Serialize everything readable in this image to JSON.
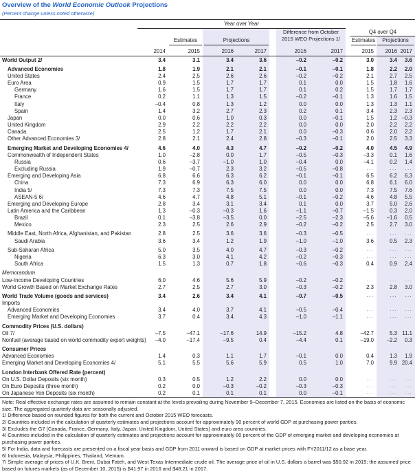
{
  "title": {
    "prefix": "Overview of the ",
    "italic": "World Economic Outlook",
    "suffix": " Projections"
  },
  "subtitle": "(Percent change unless noted otherwise)",
  "colors": {
    "accent_blue": "#2262c2",
    "highlight_band": "#e7e7f6",
    "rule": "#2a2a2a"
  },
  "table": {
    "header": {
      "group_year_over_year": "Year over Year",
      "group_difference_line1": "Difference from October",
      "group_difference_line2": "2015 WEO Projections 1/",
      "group_q4_over_q4": "Q4 over Q4",
      "estimates_yoy": "Estimates",
      "projections_yoy": "Projections",
      "estimates_q4": "Estimates",
      "projections_q4": "Projections",
      "years": [
        "2014",
        "2015",
        "2016",
        "2017",
        "2016",
        "2017",
        "2015",
        "2016",
        "2017"
      ]
    },
    "rows": [
      {
        "label": "World Output 2/",
        "indent": 0,
        "bold": true,
        "values": [
          "3.4",
          "3.1",
          "3.4",
          "3.6",
          "–0.2",
          "–0.2",
          "3.0",
          "3.4",
          "3.6"
        ]
      },
      {
        "label": "Advanced Economies",
        "indent": 1,
        "bold": true,
        "gap": true,
        "values": [
          "1.8",
          "1.9",
          "2.1",
          "2.1",
          "–0.1",
          "–0.1",
          "1.8",
          "2.2",
          "2.0"
        ]
      },
      {
        "label": "United States",
        "indent": 1,
        "values": [
          "2.4",
          "2.5",
          "2.6",
          "2.6",
          "–0.2",
          "–0.2",
          "2.1",
          "2.7",
          "2.5"
        ]
      },
      {
        "label": "Euro Area",
        "indent": 1,
        "values": [
          "0.9",
          "1.5",
          "1.7",
          "1.7",
          "0.1",
          "0.0",
          "1.5",
          "1.8",
          "1.6"
        ]
      },
      {
        "label": "Germany",
        "indent": 2,
        "values": [
          "1.6",
          "1.5",
          "1.7",
          "1.7",
          "0.1",
          "0.2",
          "1.5",
          "1.7",
          "1.7"
        ]
      },
      {
        "label": "France",
        "indent": 2,
        "values": [
          "0.2",
          "1.1",
          "1.3",
          "1.5",
          "–0.2",
          "–0.1",
          "1.3",
          "1.6",
          "1.5"
        ]
      },
      {
        "label": "Italy",
        "indent": 2,
        "values": [
          "–0.4",
          "0.8",
          "1.3",
          "1.2",
          "0.0",
          "0.0",
          "1.3",
          "1.3",
          "1.1"
        ]
      },
      {
        "label": "Spain",
        "indent": 2,
        "values": [
          "1.4",
          "3.2",
          "2.7",
          "2.3",
          "0.2",
          "0.1",
          "3.4",
          "2.3",
          "2.3"
        ]
      },
      {
        "label": "Japan",
        "indent": 1,
        "values": [
          "0.0",
          "0.6",
          "1.0",
          "0.3",
          "0.0",
          "–0.1",
          "1.5",
          "1.2",
          "–0.3"
        ]
      },
      {
        "label": "United Kingdom",
        "indent": 1,
        "values": [
          "2.9",
          "2.2",
          "2.2",
          "2.2",
          "0.0",
          "0.0",
          "2.0",
          "2.2",
          "2.2"
        ]
      },
      {
        "label": "Canada",
        "indent": 1,
        "values": [
          "2.5",
          "1.2",
          "1.7",
          "2.1",
          "0.0",
          "–0.3",
          "0.6",
          "2.0",
          "2.2"
        ]
      },
      {
        "label": "Other Advanced Economies 3/",
        "indent": 1,
        "values": [
          "2.8",
          "2.1",
          "2.4",
          "2.8",
          "–0.3",
          "–0.1",
          "2.0",
          "2.5",
          "3.3"
        ]
      },
      {
        "label": "Emerging Market and Developing Economies 4/",
        "indent": 1,
        "bold": true,
        "gap": true,
        "values": [
          "4.6",
          "4.0",
          "4.3",
          "4.7",
          "–0.2",
          "–0.2",
          "4.0",
          "4.5",
          "4.9"
        ]
      },
      {
        "label": "Commonwealth of Independent States",
        "indent": 1,
        "values": [
          "1.0",
          "–2.8",
          "0.0",
          "1.7",
          "–0.5",
          "–0.3",
          "–3.3",
          "0.1",
          "1.6"
        ]
      },
      {
        "label": "Russia",
        "indent": 2,
        "values": [
          "0.6",
          "–3.7",
          "–1.0",
          "1.0",
          "–0.4",
          "0.0",
          "–4.1",
          "0.2",
          "1.4"
        ]
      },
      {
        "label": "Excluding Russia",
        "indent": 2,
        "values": [
          "1.9",
          "–0.7",
          "2.3",
          "3.2",
          "–0.5",
          "–0.8",
          "...",
          "...",
          "..."
        ]
      },
      {
        "label": "Emerging and Developing Asia",
        "indent": 1,
        "values": [
          "6.8",
          "6.6",
          "6.3",
          "6.2",
          "–0.1",
          "–0.1",
          "6.5",
          "6.2",
          "6.3"
        ]
      },
      {
        "label": "China",
        "indent": 2,
        "values": [
          "7.3",
          "6.9",
          "6.3",
          "6.0",
          "0.0",
          "0.0",
          "6.8",
          "6.1",
          "6.0"
        ]
      },
      {
        "label": "India 5/",
        "indent": 2,
        "values": [
          "7.3",
          "7.3",
          "7.5",
          "7.5",
          "0.0",
          "0.0",
          "7.3",
          "7.5",
          "7.6"
        ]
      },
      {
        "label": "ASEAN-5 6/",
        "indent": 2,
        "values": [
          "4.6",
          "4.7",
          "4.8",
          "5.1",
          "–0.1",
          "–0.2",
          "4.6",
          "4.8",
          "5.5"
        ]
      },
      {
        "label": "Emerging and Developing Europe",
        "indent": 1,
        "values": [
          "2.8",
          "3.4",
          "3.1",
          "3.4",
          "0.1",
          "0.0",
          "3.7",
          "5.0",
          "2.6"
        ]
      },
      {
        "label": "Latin America and the Caribbean",
        "indent": 1,
        "values": [
          "1.3",
          "–0.3",
          "–0.3",
          "1.6",
          "–1.1",
          "–0.7",
          "–1.5",
          "0.3",
          "2.0"
        ]
      },
      {
        "label": "Brazil",
        "indent": 2,
        "values": [
          "0.1",
          "–3.8",
          "–3.5",
          "0.0",
          "–2.5",
          "–2.3",
          "–5.6",
          "–1.6",
          "0.5"
        ]
      },
      {
        "label": "Mexico",
        "indent": 2,
        "values": [
          "2.3",
          "2.5",
          "2.6",
          "2.9",
          "–0.2",
          "–0.2",
          "2.5",
          "2.7",
          "3.0"
        ]
      },
      {
        "label": "Middle East, North Africa, Afghanistan, and Pakistan",
        "indent": 1,
        "gap": true,
        "values": [
          "2.8",
          "2.5",
          "3.6",
          "3.6",
          "–0.3",
          "–0.5",
          "...",
          "...",
          "..."
        ]
      },
      {
        "label": "Saudi Arabia",
        "indent": 2,
        "values": [
          "3.6",
          "3.4",
          "1.2",
          "1.9",
          "–1.0",
          "–1.0",
          "3.6",
          "0.5",
          "2.3"
        ]
      },
      {
        "label": "Sub-Saharan Africa",
        "indent": 1,
        "gap": true,
        "values": [
          "5.0",
          "3.5",
          "4.0",
          "4.7",
          "–0.3",
          "–0.2",
          "...",
          "...",
          "..."
        ]
      },
      {
        "label": "Nigeria",
        "indent": 2,
        "values": [
          "6.3",
          "3.0",
          "4.1",
          "4.2",
          "–0.2",
          "–0.3",
          "...",
          "...",
          "..."
        ]
      },
      {
        "label": "South Africa",
        "indent": 2,
        "values": [
          "1.5",
          "1.3",
          "0.7",
          "1.8",
          "–0.6",
          "–0.3",
          "0.4",
          "0.9",
          "2.4"
        ]
      },
      {
        "label": "Memorandum",
        "indent": 0,
        "italic": true,
        "gap": true,
        "values": []
      },
      {
        "label": "Low-Income Developing Countries",
        "indent": 0,
        "values": [
          "6.0",
          "4.6",
          "5.6",
          "5.9",
          "–0.2",
          "–0.2",
          "...",
          "...",
          "..."
        ]
      },
      {
        "label": "World Growth Based on Market Exchange Rates",
        "indent": 0,
        "values": [
          "2.7",
          "2.5",
          "2.7",
          "3.0",
          "–0.3",
          "–0.2",
          "2.3",
          "2.8",
          "3.0"
        ]
      },
      {
        "label": "World Trade Volume (goods and services)",
        "indent": 0,
        "bold": true,
        "gap": true,
        "values": [
          "3.4",
          "2.6",
          "3.4",
          "4.1",
          "–0.7",
          "–0.5",
          "...",
          "...",
          "..."
        ]
      },
      {
        "label": "Imports",
        "indent": 0,
        "values": []
      },
      {
        "label": "Advanced Economies",
        "indent": 1,
        "values": [
          "3.4",
          "4.0",
          "3.7",
          "4.1",
          "–0.5",
          "–0.4",
          "...",
          "...",
          "..."
        ]
      },
      {
        "label": "Emerging Market and Developing Economies",
        "indent": 1,
        "values": [
          "3.7",
          "0.4",
          "3.4",
          "4.3",
          "–1.0",
          "–1.1",
          "...",
          "...",
          "..."
        ]
      },
      {
        "label": "Commodity Prices (U.S. dollars)",
        "indent": 0,
        "bold": true,
        "gap": true,
        "values": []
      },
      {
        "label": "Oil 7/",
        "indent": 0,
        "values": [
          "–7.5",
          "–47.1",
          "–17.6",
          "14.9",
          "–15.2",
          "4.8",
          "–42.7",
          "5.3",
          "11.1"
        ]
      },
      {
        "label": "Nonfuel (average based on world commodity export weights)",
        "indent": 0,
        "values": [
          "–4.0",
          "–17.4",
          "–9.5",
          "0.4",
          "–4.4",
          "0.1",
          "–19.0",
          "–2.2",
          "0.3"
        ]
      },
      {
        "label": "Consumer Prices",
        "indent": 0,
        "bold": true,
        "gap": true,
        "values": []
      },
      {
        "label": "Advanced Economies",
        "indent": 0,
        "values": [
          "1.4",
          "0.3",
          "1.1",
          "1.7",
          "–0.1",
          "0.0",
          "0.4",
          "1.3",
          "1.9"
        ]
      },
      {
        "label": "Emerging Market and Developing Economies 4/",
        "indent": 0,
        "values": [
          "5.1",
          "5.5",
          "5.6",
          "5.9",
          "0.5",
          "1.0",
          "7.0",
          "9.9",
          "20.4"
        ]
      },
      {
        "label": "London Interbank Offered Rate (percent)",
        "indent": 0,
        "bold": true,
        "gap": true,
        "values": []
      },
      {
        "label": "On U.S. Dollar Deposits (six month)",
        "indent": 0,
        "values": [
          "0.3",
          "0.5",
          "1.2",
          "2.2",
          "0.0",
          "0.0",
          "...",
          "...",
          "..."
        ]
      },
      {
        "label": "On Euro Deposits (three month)",
        "indent": 0,
        "values": [
          "0.2",
          "0.0",
          "–0.3",
          "–0.2",
          "–0.3",
          "–0.3",
          "...",
          "...",
          "..."
        ]
      },
      {
        "label": "On Japanese Yen Deposits (six month)",
        "indent": 0,
        "values": [
          "0.2",
          "0.1",
          "0.1",
          "0.1",
          "0.0",
          "–0.1",
          "...",
          "...",
          "..."
        ]
      }
    ]
  },
  "footnotes": [
    "Note: Real effective exchange rates are assumed to remain constant at the levels prevailing during November 9–December 7, 2015. Economies are listed on the basis of economic size. The aggregated quarterly data are seasonally adjusted.",
    "1/ Difference based on rounded figures for both the current and October 2015 WEO forecasts.",
    "2/ Countries included in the calculation of quarterly estimates and projections account for approximately 90 percent of world GDP at purchasing power parities.",
    "3/ Excludes the G7 (Canada, France, Germany, Italy, Japan, United Kingdom, United States) and euro area countries.",
    "4/ Countries included in the calculation of quarterly estimates and projections account for approximately 80 percent of the GDP of emerging market and developing economies at purchasing power parities.",
    "5/ For India, data and forecasts are presented on a fiscal year basis and GDP from 2011 onward is based on GDP at market prices with FY2011/12 as a base year.",
    "6/ Indonesia, Malaysia, Philippines, Thailand, Vietnam.",
    "7/ Simple average of prices of U.K. Brent, Dubai Fateh, and West Texas Intermediate crude oil. The average price of oil in U.S. dollars a barrel was $50.92 in 2015; the assumed price based on futures markets (as of December 10, 2015) is $41.97 in 2016 and $48.21 in 2017."
  ]
}
